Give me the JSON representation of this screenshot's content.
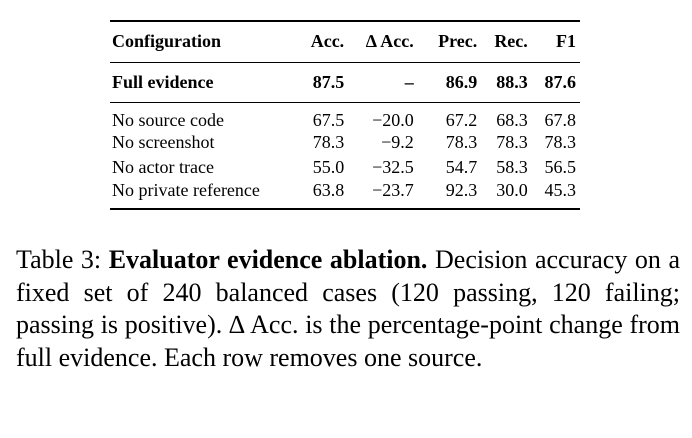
{
  "table": {
    "headers": [
      "Configuration",
      "Acc.",
      "∆ Acc.",
      "Prec.",
      "Rec.",
      "F1"
    ],
    "full_row": {
      "label": "Full evidence",
      "values": [
        "87.5",
        "–",
        "86.9",
        "88.3",
        "87.6"
      ]
    },
    "ablation_rows": [
      {
        "label": "No source code",
        "values": [
          "67.5",
          "−20.0",
          "67.2",
          "68.3",
          "67.8"
        ]
      },
      {
        "label": "No screenshot",
        "values": [
          "78.3",
          "−9.2",
          "78.3",
          "78.3",
          "78.3"
        ]
      },
      {
        "label": "No actor trace",
        "values": [
          "55.0",
          "−32.5",
          "54.7",
          "58.3",
          "56.5"
        ]
      },
      {
        "label": "No private reference",
        "values": [
          "63.8",
          "−23.7",
          "92.3",
          "30.0",
          "45.3"
        ]
      }
    ]
  },
  "caption": {
    "prefix": "Table 3: ",
    "title": "Evaluator evidence ablation.",
    "body": " Decision accuracy on a fixed set of 240 balanced cases (120 passing, 120 failing; passing is positive). ∆ Acc. is the percentage-point change from full evidence. Each row removes one source."
  }
}
